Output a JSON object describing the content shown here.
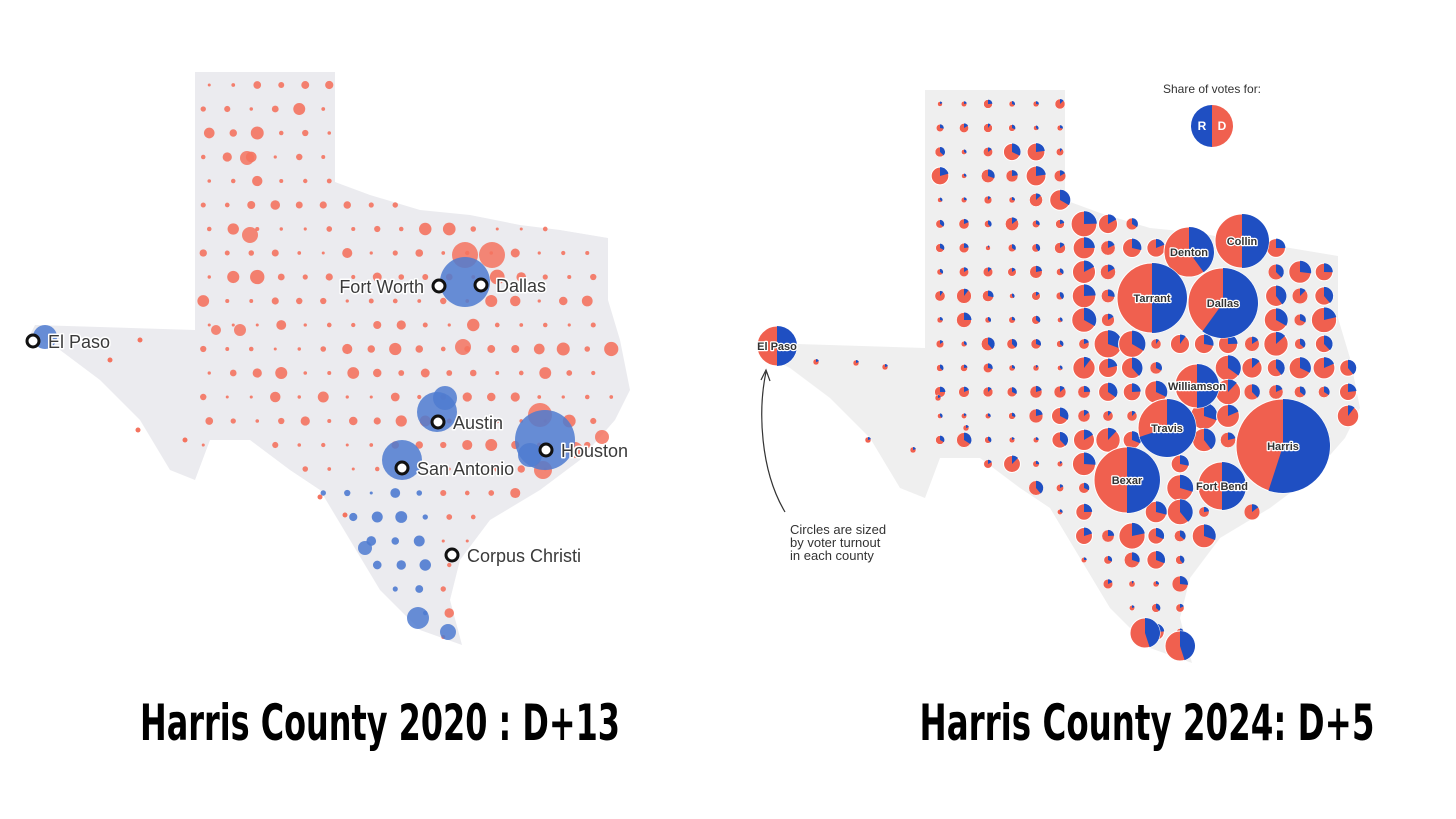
{
  "left_map": {
    "title": "Harris County 2020 : D+13",
    "cities": [
      "Fort Worth",
      "Dallas",
      "El Paso",
      "Austin",
      "Houston",
      "San Antonio",
      "Corpus Christi"
    ]
  },
  "right_map": {
    "title": "Harris County 2024: D+5",
    "legend": {
      "title": "Share of votes for:",
      "r": "R",
      "d": "D"
    },
    "counties": [
      "El Paso",
      "Denton",
      "Collin",
      "Tarrant",
      "Dallas",
      "Williamson",
      "Travis",
      "Harris",
      "Bexar",
      "Fort Bend"
    ],
    "note": [
      "Circles are sized",
      "by voter turnout",
      "in each county"
    ]
  }
}
